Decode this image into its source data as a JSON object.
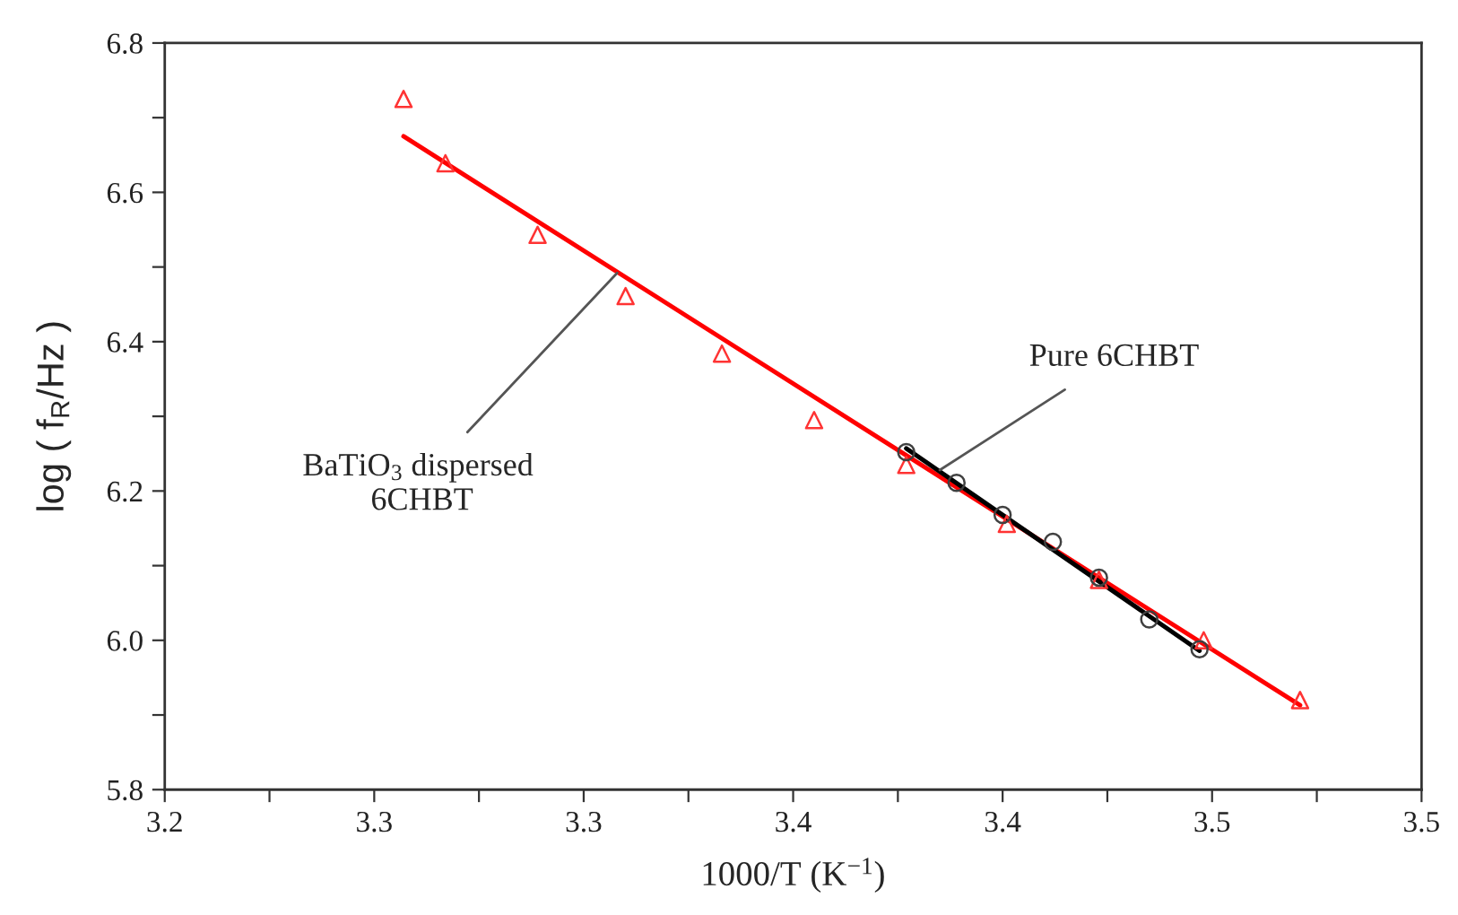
{
  "chart_data": {
    "type": "scatter",
    "xlabel": "1000/T (K$^{−1}$)",
    "ylabel": "log ( f$_{R}$/Hz )",
    "series": [
      {
        "color": "#ff3333",
        "marker": "triangle",
        "x": [
          3.257,
          3.267,
          3.289,
          3.31,
          3.333,
          3.355,
          3.377,
          3.401,
          3.423,
          3.448,
          3.471
        ],
        "values": [
          6.725,
          6.639,
          6.543,
          6.461,
          6.384,
          6.295,
          6.235,
          6.156,
          6.081,
          6.0,
          5.92
        ]
      },
      {
        "type": "line",
        "color": "#ff0000",
        "marker": "none",
        "x": [
          3.257,
          3.471
        ],
        "values": [
          6.675,
          5.913
        ]
      },
      {
        "color": "#404040",
        "marker": "circle",
        "x": [
          3.377,
          3.389,
          3.4,
          3.412,
          3.423,
          3.435,
          3.447
        ],
        "values": [
          6.252,
          6.211,
          6.168,
          6.132,
          6.084,
          6.028,
          5.988
        ]
      },
      {
        "type": "line",
        "color": "#000000",
        "marker": "none",
        "x": [
          3.377,
          3.447
        ],
        "values": [
          6.257,
          5.986
        ]
      }
    ],
    "annotations": [
      {
        "text": "BaTiO$_{3}$ dispersed\n 6CHBT",
        "x": 3.308,
        "y": 6.492
      },
      {
        "text": "Pure 6CHBT",
        "x": 3.385,
        "y": 6.228
      }
    ],
    "xlim": [
      3.2,
      3.5
    ],
    "xticks": [
      {
        "value": 3.2,
        "label": "3.2"
      },
      {
        "value": 3.225,
        "label": null
      },
      {
        "value": 3.25,
        "label": "3.3"
      },
      {
        "value": 3.275,
        "label": null
      },
      {
        "value": 3.3,
        "label": "3.3"
      },
      {
        "value": 3.325,
        "label": null
      },
      {
        "value": 3.35,
        "label": "3.4"
      },
      {
        "value": 3.375,
        "label": null
      },
      {
        "value": 3.4,
        "label": "3.4"
      },
      {
        "value": 3.425,
        "label": null
      },
      {
        "value": 3.45,
        "label": "3.5"
      },
      {
        "value": 3.475,
        "label": null
      },
      {
        "value": 3.5,
        "label": "3.5"
      }
    ],
    "ylim": [
      5.8,
      6.8
    ],
    "yticks": [
      {
        "value": 5.8,
        "label": "5.8"
      },
      {
        "value": 5.9,
        "label": null
      },
      {
        "value": 6.0,
        "label": "6.0"
      },
      {
        "value": 6.1,
        "label": null
      },
      {
        "value": 6.2,
        "label": "6.2"
      },
      {
        "value": 6.3,
        "label": null
      },
      {
        "value": 6.4,
        "label": "6.4"
      },
      {
        "value": 6.5,
        "label": null
      },
      {
        "value": 6.6,
        "label": "6.6"
      },
      {
        "value": 6.7,
        "label": null
      },
      {
        "value": 6.8,
        "label": "6.8"
      }
    ],
    "grid": false,
    "legend": false
  }
}
